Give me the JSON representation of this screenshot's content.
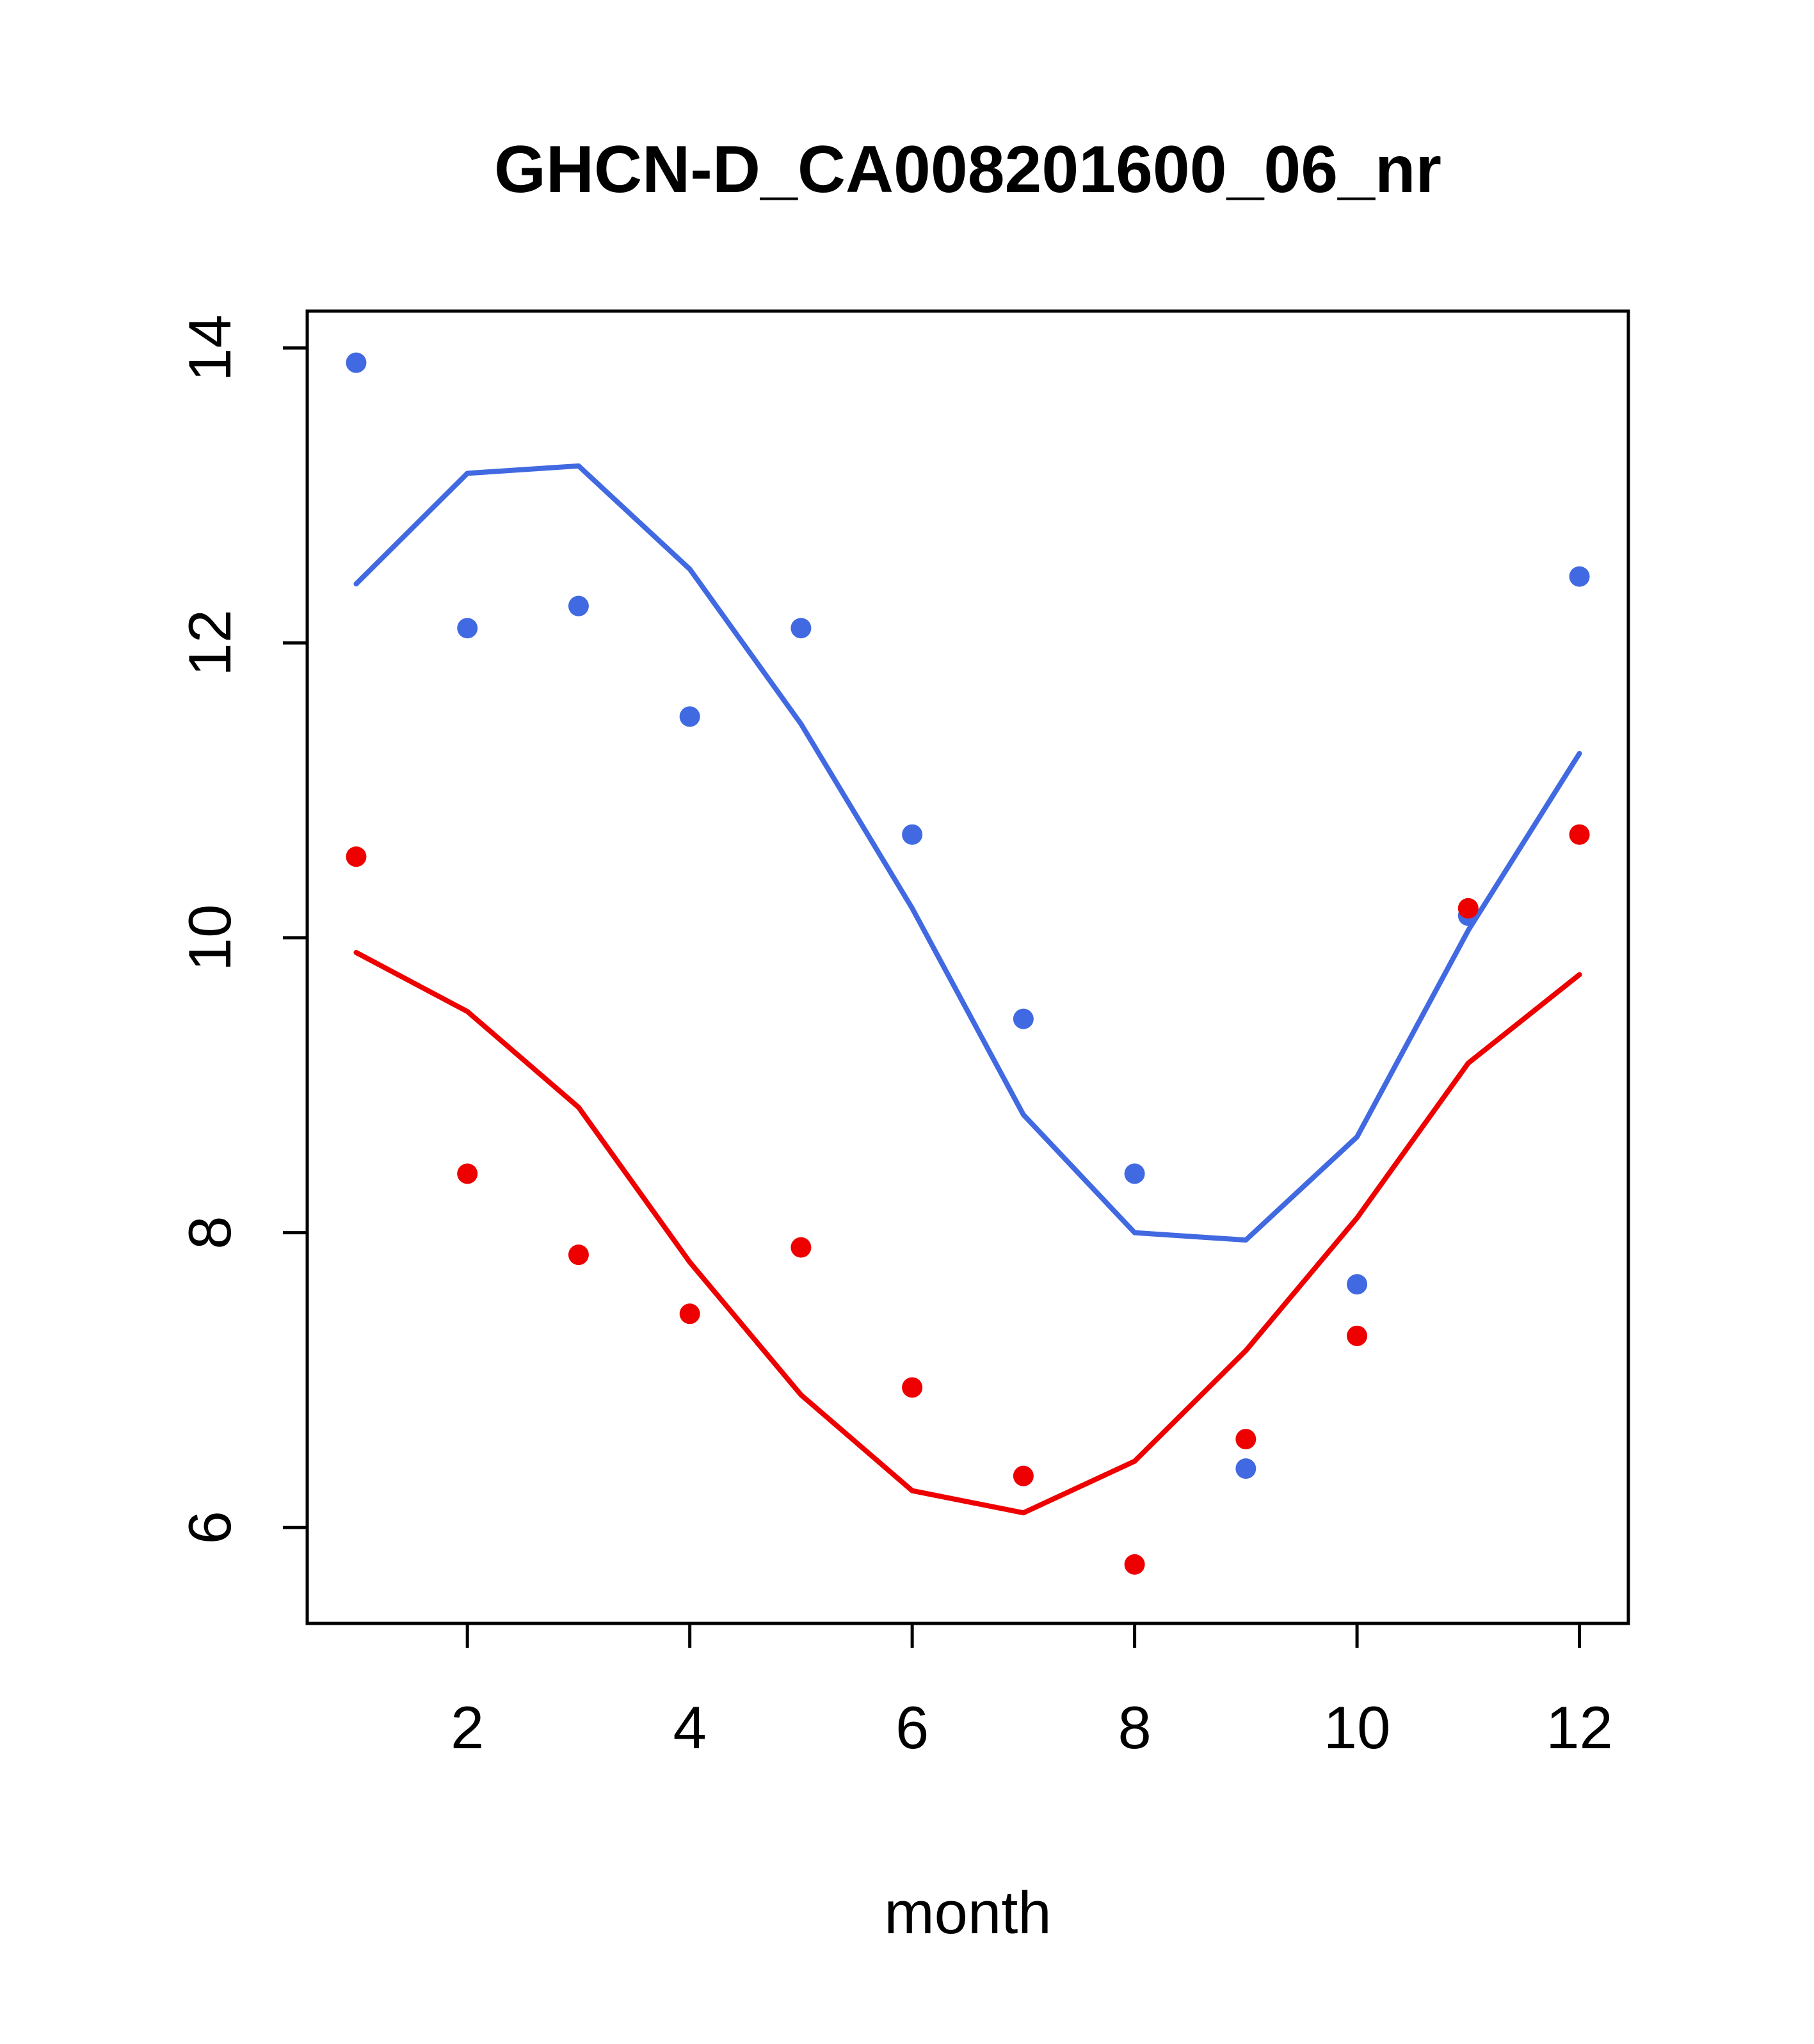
{
  "chart_data": {
    "type": "scatter",
    "title": "GHCN-D_CA008201600_06_nr",
    "xlabel": "month",
    "ylabel": "",
    "xlim": [
      0.56,
      12.44
    ],
    "ylim": [
      5.35,
      14.25
    ],
    "x_ticks": [
      2,
      4,
      6,
      8,
      10,
      12
    ],
    "y_ticks": [
      6,
      8,
      10,
      12,
      14
    ],
    "grid": false,
    "legend": "none",
    "x": [
      1,
      2,
      3,
      4,
      5,
      6,
      7,
      8,
      9,
      10,
      11,
      12
    ],
    "series": [
      {
        "name": "blue-line",
        "kind": "line",
        "color": "#4169e1",
        "values": [
          12.4,
          13.15,
          13.2,
          12.5,
          11.45,
          10.2,
          8.8,
          8.0,
          7.95,
          8.65,
          10.05,
          11.25
        ]
      },
      {
        "name": "red-line",
        "kind": "line",
        "color": "#ee0000",
        "values": [
          9.9,
          9.5,
          8.85,
          7.8,
          6.9,
          6.25,
          6.1,
          6.45,
          7.2,
          8.1,
          9.15,
          9.75
        ]
      },
      {
        "name": "blue-points",
        "kind": "points",
        "color": "#4169e1",
        "values": [
          13.9,
          12.1,
          12.25,
          11.5,
          12.1,
          10.7,
          9.45,
          8.4,
          6.4,
          7.65,
          10.15,
          12.45
        ]
      },
      {
        "name": "red-points",
        "kind": "points",
        "color": "#ee0000",
        "values": [
          10.55,
          8.4,
          7.85,
          7.45,
          7.9,
          6.95,
          6.35,
          5.75,
          6.6,
          7.3,
          10.2,
          10.7
        ]
      }
    ]
  }
}
